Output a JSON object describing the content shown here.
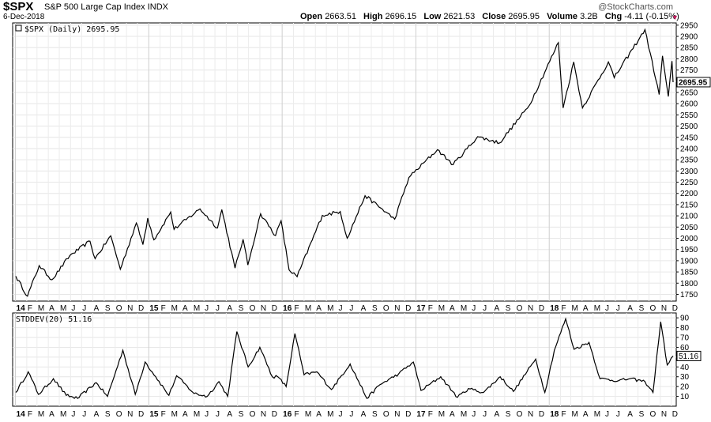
{
  "header": {
    "ticker": "$SPX",
    "description": "S&P 500 Large Cap Index",
    "exchange": "INDX",
    "date": "6-Dec-2018",
    "brand": "@StockCharts.com",
    "open_label": "Open",
    "open": "2663.51",
    "high_label": "High",
    "high": "2696.15",
    "low_label": "Low",
    "low": "2621.53",
    "close_label": "Close",
    "close": "2695.95",
    "volume_label": "Volume",
    "volume": "3.2B",
    "chg_label": "Chg",
    "chg": "-4.11 (-0.15%)",
    "down_color": "#c0185b"
  },
  "chart_data": [
    {
      "type": "line",
      "panel": "price",
      "legend": "$SPX (Daily) 2695.95",
      "last_value_label": "2695.95",
      "ylim": [
        1720,
        2960
      ],
      "yticks": [
        1750,
        1800,
        1850,
        1900,
        1950,
        2000,
        2050,
        2100,
        2150,
        2200,
        2250,
        2300,
        2350,
        2400,
        2450,
        2500,
        2550,
        2600,
        2650,
        2700,
        2750,
        2800,
        2850,
        2900,
        2950
      ],
      "x_range": [
        "2014-01-02",
        "2018-12-06"
      ],
      "series": [
        {
          "points": [
            [
              "2014-01-02",
              1831
            ],
            [
              "2014-02-03",
              1742
            ],
            [
              "2014-03-07",
              1878
            ],
            [
              "2014-04-11",
              1815
            ],
            [
              "2014-05-30",
              1923
            ],
            [
              "2014-07-24",
              1987
            ],
            [
              "2014-08-07",
              1909
            ],
            [
              "2014-09-19",
              2011
            ],
            [
              "2014-10-15",
              1862
            ],
            [
              "2014-11-28",
              2068
            ],
            [
              "2014-12-16",
              1972
            ],
            [
              "2014-12-29",
              2090
            ],
            [
              "2015-01-15",
              1993
            ],
            [
              "2015-03-02",
              2117
            ],
            [
              "2015-03-11",
              2040
            ],
            [
              "2015-05-21",
              2131
            ],
            [
              "2015-07-08",
              2046
            ],
            [
              "2015-07-20",
              2128
            ],
            [
              "2015-08-25",
              1867
            ],
            [
              "2015-09-16",
              1995
            ],
            [
              "2015-09-29",
              1881
            ],
            [
              "2015-11-03",
              2109
            ],
            [
              "2015-12-14",
              2012
            ],
            [
              "2015-12-29",
              2078
            ],
            [
              "2016-01-20",
              1859
            ],
            [
              "2016-02-11",
              1829
            ],
            [
              "2016-04-20",
              2102
            ],
            [
              "2016-06-08",
              2119
            ],
            [
              "2016-06-27",
              2000
            ],
            [
              "2016-08-15",
              2190
            ],
            [
              "2016-11-04",
              2085
            ],
            [
              "2016-12-13",
              2271
            ],
            [
              "2017-03-01",
              2395
            ],
            [
              "2017-04-13",
              2328
            ],
            [
              "2017-06-19",
              2453
            ],
            [
              "2017-08-18",
              2425
            ],
            [
              "2017-11-07",
              2591
            ],
            [
              "2018-01-26",
              2872
            ],
            [
              "2018-02-08",
              2581
            ],
            [
              "2018-03-09",
              2786
            ],
            [
              "2018-04-02",
              2581
            ],
            [
              "2018-06-12",
              2786
            ],
            [
              "2018-06-28",
              2716
            ],
            [
              "2018-09-20",
              2930
            ],
            [
              "2018-10-29",
              2641
            ],
            [
              "2018-11-07",
              2813
            ],
            [
              "2018-11-23",
              2632
            ],
            [
              "2018-12-03",
              2790
            ],
            [
              "2018-12-06",
              2695.95
            ]
          ]
        }
      ]
    },
    {
      "type": "line",
      "panel": "indicator",
      "legend": "STDDEV(20) 51.16",
      "last_value_label": "51.16",
      "ylim": [
        0,
        95
      ],
      "yticks": [
        10,
        20,
        30,
        40,
        50,
        60,
        70,
        80,
        90
      ],
      "series": [
        {
          "name": "STDDEV(20)",
          "points": [
            [
              "2014-01-02",
              14
            ],
            [
              "2014-02-05",
              35
            ],
            [
              "2014-03-05",
              12
            ],
            [
              "2014-04-15",
              28
            ],
            [
              "2014-05-20",
              11
            ],
            [
              "2014-06-20",
              8
            ],
            [
              "2014-08-10",
              24
            ],
            [
              "2014-09-10",
              10
            ],
            [
              "2014-10-22",
              57
            ],
            [
              "2014-11-25",
              12
            ],
            [
              "2014-12-22",
              45
            ],
            [
              "2015-01-20",
              30
            ],
            [
              "2015-02-25",
              11
            ],
            [
              "2015-03-18",
              31
            ],
            [
              "2015-05-05",
              13
            ],
            [
              "2015-06-10",
              10
            ],
            [
              "2015-07-12",
              25
            ],
            [
              "2015-08-05",
              10
            ],
            [
              "2015-08-30",
              76
            ],
            [
              "2015-09-30",
              40
            ],
            [
              "2015-11-01",
              60
            ],
            [
              "2015-12-05",
              30
            ],
            [
              "2015-12-20",
              30
            ],
            [
              "2016-01-12",
              20
            ],
            [
              "2016-02-05",
              74
            ],
            [
              "2016-03-01",
              32
            ],
            [
              "2016-04-05",
              35
            ],
            [
              "2016-05-15",
              17
            ],
            [
              "2016-07-05",
              43
            ],
            [
              "2016-08-20",
              8
            ],
            [
              "2016-09-25",
              22
            ],
            [
              "2016-11-15",
              33
            ],
            [
              "2016-12-25",
              45
            ],
            [
              "2017-01-15",
              16
            ],
            [
              "2017-03-10",
              30
            ],
            [
              "2017-04-25",
              9
            ],
            [
              "2017-05-25",
              18
            ],
            [
              "2017-07-05",
              14
            ],
            [
              "2017-08-20",
              30
            ],
            [
              "2017-09-25",
              15
            ],
            [
              "2017-11-25",
              48
            ],
            [
              "2017-12-20",
              14
            ],
            [
              "2018-01-15",
              57
            ],
            [
              "2018-02-15",
              89
            ],
            [
              "2018-03-10",
              58
            ],
            [
              "2018-04-20",
              65
            ],
            [
              "2018-05-20",
              28
            ],
            [
              "2018-07-10",
              26
            ],
            [
              "2018-08-10",
              28
            ],
            [
              "2018-09-20",
              25
            ],
            [
              "2018-10-12",
              14
            ],
            [
              "2018-11-02",
              86
            ],
            [
              "2018-11-20",
              42
            ],
            [
              "2018-12-06",
              51.16
            ]
          ]
        }
      ]
    }
  ],
  "x_axis": {
    "ticks": [
      {
        "date": "2014-01-01",
        "label": "14",
        "bold": true
      },
      {
        "date": "2014-02-01",
        "label": "F"
      },
      {
        "date": "2014-03-01",
        "label": "M"
      },
      {
        "date": "2014-04-01",
        "label": "A"
      },
      {
        "date": "2014-05-01",
        "label": "M"
      },
      {
        "date": "2014-06-01",
        "label": "J"
      },
      {
        "date": "2014-07-01",
        "label": "J"
      },
      {
        "date": "2014-08-01",
        "label": "A"
      },
      {
        "date": "2014-09-01",
        "label": "S"
      },
      {
        "date": "2014-10-01",
        "label": "O"
      },
      {
        "date": "2014-11-01",
        "label": "N"
      },
      {
        "date": "2014-12-01",
        "label": "D"
      },
      {
        "date": "2015-01-01",
        "label": "15",
        "bold": true
      },
      {
        "date": "2015-02-01",
        "label": "F"
      },
      {
        "date": "2015-03-01",
        "label": "M"
      },
      {
        "date": "2015-04-01",
        "label": "A"
      },
      {
        "date": "2015-05-01",
        "label": "M"
      },
      {
        "date": "2015-06-01",
        "label": "J"
      },
      {
        "date": "2015-07-01",
        "label": "J"
      },
      {
        "date": "2015-08-01",
        "label": "A"
      },
      {
        "date": "2015-09-01",
        "label": "S"
      },
      {
        "date": "2015-10-01",
        "label": "O"
      },
      {
        "date": "2015-11-01",
        "label": "N"
      },
      {
        "date": "2015-12-01",
        "label": "D"
      },
      {
        "date": "2016-01-01",
        "label": "16",
        "bold": true
      },
      {
        "date": "2016-02-01",
        "label": "F"
      },
      {
        "date": "2016-03-01",
        "label": "M"
      },
      {
        "date": "2016-04-01",
        "label": "A"
      },
      {
        "date": "2016-05-01",
        "label": "M"
      },
      {
        "date": "2016-06-01",
        "label": "J"
      },
      {
        "date": "2016-07-01",
        "label": "J"
      },
      {
        "date": "2016-08-01",
        "label": "A"
      },
      {
        "date": "2016-09-01",
        "label": "S"
      },
      {
        "date": "2016-10-01",
        "label": "O"
      },
      {
        "date": "2016-11-01",
        "label": "N"
      },
      {
        "date": "2016-12-01",
        "label": "D"
      },
      {
        "date": "2017-01-01",
        "label": "17",
        "bold": true
      },
      {
        "date": "2017-02-01",
        "label": "F"
      },
      {
        "date": "2017-03-01",
        "label": "M"
      },
      {
        "date": "2017-04-01",
        "label": "A"
      },
      {
        "date": "2017-05-01",
        "label": "M"
      },
      {
        "date": "2017-06-01",
        "label": "J"
      },
      {
        "date": "2017-07-01",
        "label": "J"
      },
      {
        "date": "2017-08-01",
        "label": "A"
      },
      {
        "date": "2017-09-01",
        "label": "S"
      },
      {
        "date": "2017-10-01",
        "label": "O"
      },
      {
        "date": "2017-11-01",
        "label": "N"
      },
      {
        "date": "2017-12-01",
        "label": "D"
      },
      {
        "date": "2018-01-01",
        "label": "18",
        "bold": true
      },
      {
        "date": "2018-02-01",
        "label": "F"
      },
      {
        "date": "2018-03-01",
        "label": "M"
      },
      {
        "date": "2018-04-01",
        "label": "A"
      },
      {
        "date": "2018-05-01",
        "label": "M"
      },
      {
        "date": "2018-06-01",
        "label": "J"
      },
      {
        "date": "2018-07-01",
        "label": "J"
      },
      {
        "date": "2018-08-01",
        "label": "A"
      },
      {
        "date": "2018-09-01",
        "label": "S"
      },
      {
        "date": "2018-10-01",
        "label": "O"
      },
      {
        "date": "2018-11-01",
        "label": "N"
      },
      {
        "date": "2018-12-01",
        "label": "D"
      }
    ]
  }
}
